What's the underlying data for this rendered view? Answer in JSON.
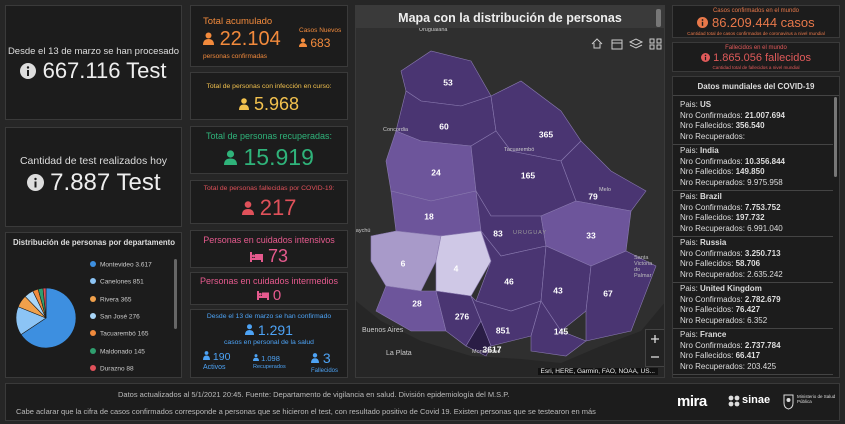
{
  "counters": {
    "processed": {
      "caption": "Desde el 13 de marzo se han procesado",
      "value": "667.116 Test"
    },
    "today": {
      "caption": "Cantidad de test realizados hoy",
      "value": "7.887 Test"
    }
  },
  "departments": {
    "title": "Distribución de personas por departamento",
    "names": [
      "Montevideo",
      "Canelones",
      "Rivera",
      "San José",
      "Tacuarembó",
      "Maldonado",
      "Durazno"
    ],
    "values": [
      3617,
      851,
      365,
      276,
      165,
      145,
      88
    ],
    "value_labels": [
      "3.617",
      "851",
      "365",
      "276",
      "165",
      "145",
      "88"
    ],
    "colors": [
      "#3d8fe0",
      "#8cc4f5",
      "#f0a04b",
      "#a9d6f8",
      "#f08a3c",
      "#2f9e6e",
      "#e0515a"
    ]
  },
  "cases": {
    "total_title": "Total acumulado",
    "total": "22.104",
    "total_caption": "personas confirmadas",
    "new_title": "Casos Nuevos",
    "new": "683"
  },
  "active": {
    "title": "Total de personas con infección en curso:",
    "value": "5.968"
  },
  "recovered": {
    "title": "Total de personas recuperadas:",
    "value": "15.919"
  },
  "deaths": {
    "title": "Total de personas fallecidas por COVID-19:",
    "value": "217"
  },
  "icu": {
    "title": "Personas en cuidados intensivos",
    "value": "73"
  },
  "intermediate": {
    "title": "Personas en cuidados intermedios",
    "value": "0"
  },
  "health_staff": {
    "caption": "Desde el 13 de marzo se han confirmado",
    "value": "1.291",
    "caption2": "casos en personal de la salud",
    "active": "190",
    "active_label": "Activos",
    "recovered": "1.098",
    "recovered_label": "Recuperados",
    "deaths": "3",
    "deaths_label": "Fallecidos"
  },
  "map": {
    "title": "Mapa con la distribución de personas",
    "department_counts": [
      "53",
      "60",
      "365",
      "24",
      "165",
      "79",
      "18",
      "83",
      "33",
      "6",
      "4",
      "46",
      "43",
      "67",
      "28",
      "276",
      "851",
      "145",
      "3617"
    ],
    "places": [
      "Uruguaiana",
      "Concordia",
      "Tacuarembó",
      "Melo",
      "Gualeguaychú",
      "URUGUAY",
      "Santa Victoria do Palmar",
      "Buenos Aires",
      "La Plata",
      "Montevideo"
    ],
    "attribution": "Esri, HERE, Garmin, FAO, NOAA, US..."
  },
  "world": {
    "cases_title": "Casos confirmados en el mundo",
    "cases": "86.209.444 casos",
    "cases_caption": "Cantidad total de casos confirmados de coronavirus a nivel mundial",
    "deaths_title": "Fallecidos en el mundo",
    "deaths": "1.865.056 fallecidos",
    "deaths_caption": "Cantidad total de fallecidos a nivel mundial",
    "list_title": "Datos mundiales del COVID-19",
    "labels": {
      "country": "Pais:",
      "confirmed": "Nro Confirmados:",
      "deaths": "Nro Fallecidos:",
      "recovered": "Nro Recuperados:"
    },
    "countries": [
      {
        "country": "US",
        "confirmed": "21.007.694",
        "deaths": "356.540"
      },
      {
        "country": "India",
        "confirmed": "10.356.844",
        "deaths": "149.850",
        "recovered": "9.975.958"
      },
      {
        "country": "Brazil",
        "confirmed": "7.753.752",
        "deaths": "197.732",
        "recovered": "6.991.040"
      },
      {
        "country": "Russia",
        "confirmed": "3.250.713",
        "deaths": "58.706",
        "recovered": "2.635.242"
      },
      {
        "country": "United Kingdom",
        "confirmed": "2.782.679",
        "deaths": "76.427",
        "recovered": "6.352"
      },
      {
        "country": "France",
        "confirmed": "2.737.784",
        "deaths": "66.417",
        "recovered": "203.425"
      }
    ]
  },
  "footer": {
    "updated": "Datos actualizados al 5/1/2021 20:45. Fuente: Departamento de vigilancia en salud. División epidemiología del M.S.P.",
    "note": "Cabe aclarar que la cifra de casos confirmados corresponde a personas que se hicieron el test, con resultado positivo de Covid 19. Existen personas que se testearon en más",
    "logos": [
      "mira",
      "sinae",
      "Ministerio de Salud Pública"
    ]
  }
}
